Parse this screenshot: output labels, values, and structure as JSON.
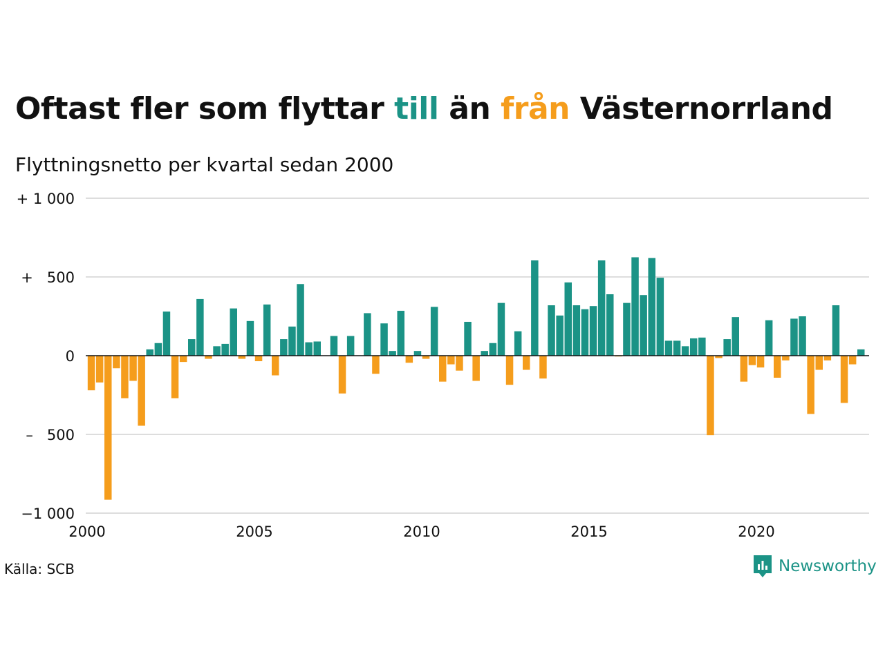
{
  "title": {
    "part1": "Oftast fler som flyttar ",
    "highlight_in": "till",
    "part2": " än ",
    "highlight_out": "från",
    "part3": " Västernorrland"
  },
  "subtitle": "Flyttningsnetto per kvartal sedan 2000",
  "source": "Källa: SCB",
  "brand": {
    "name": "Newsworthy",
    "icon": "newsworthy-logo-icon"
  },
  "colors": {
    "positive": "#1b9386",
    "negative": "#f59d1c",
    "grid": "#dddddd",
    "zero": "#111111"
  },
  "chart_data": {
    "type": "bar",
    "title": "Oftast fler som flyttar till än från Västernorrland",
    "subtitle": "Flyttningsnetto per kvartal sedan 2000",
    "xlabel": "",
    "ylabel": "",
    "x_start_year": 2000,
    "periods_per_year": 4,
    "ylim": [
      -1000,
      1000
    ],
    "yticks": [
      1000,
      500,
      0,
      -500,
      -1000
    ],
    "ytick_labels": [
      "+ 1 000",
      "+   500",
      "0",
      "–   500",
      "−1 000"
    ],
    "xticks": [
      2000,
      2005,
      2010,
      2015,
      2020
    ],
    "xtick_labels": [
      "2000",
      "2005",
      "2010",
      "2015",
      "2020"
    ],
    "grid": true,
    "values": [
      -220,
      -170,
      -915,
      -80,
      -270,
      -160,
      -445,
      40,
      80,
      280,
      -270,
      -40,
      105,
      360,
      -20,
      60,
      75,
      300,
      -20,
      220,
      -35,
      325,
      -125,
      105,
      185,
      455,
      85,
      90,
      0,
      125,
      -240,
      125,
      0,
      270,
      -115,
      205,
      30,
      285,
      -45,
      30,
      -20,
      310,
      -165,
      -55,
      -95,
      215,
      -160,
      30,
      80,
      335,
      -185,
      155,
      -90,
      605,
      -145,
      320,
      255,
      465,
      320,
      295,
      315,
      605,
      390,
      -5,
      335,
      625,
      385,
      620,
      495,
      95,
      95,
      60,
      110,
      115,
      -505,
      -15,
      105,
      245,
      -165,
      -60,
      -75,
      225,
      -140,
      -30,
      235,
      250,
      -370,
      -90,
      -30,
      320,
      -300,
      -55,
      40
    ]
  }
}
